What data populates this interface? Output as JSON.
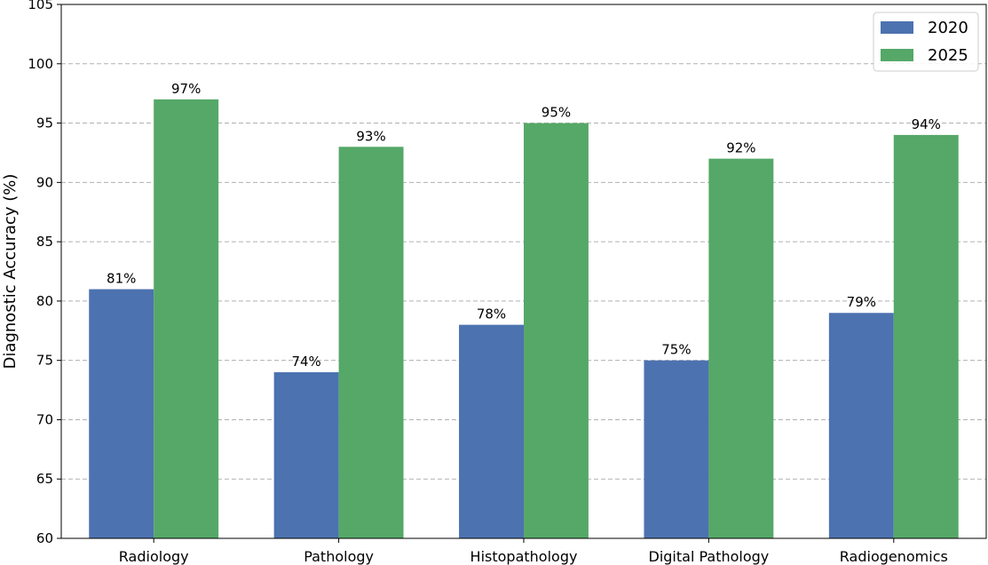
{
  "chart_data": {
    "type": "bar",
    "title": "",
    "xlabel": "",
    "ylabel": "Diagnostic Accuracy (%)",
    "categories": [
      "Radiology",
      "Pathology",
      "Histopathology",
      "Digital Pathology",
      "Radiogenomics"
    ],
    "series": [
      {
        "name": "2020",
        "color": "#4c72b0",
        "values": [
          81,
          74,
          78,
          75,
          79
        ],
        "labels": [
          "81%",
          "74%",
          "78%",
          "75%",
          "79%"
        ]
      },
      {
        "name": "2025",
        "color": "#55a868",
        "values": [
          97,
          93,
          95,
          92,
          94
        ],
        "labels": [
          "97%",
          "93%",
          "95%",
          "92%",
          "94%"
        ]
      }
    ],
    "ylim": [
      60,
      105
    ],
    "yticks": [
      "60",
      "65",
      "70",
      "75",
      "80",
      "85",
      "90",
      "95",
      "100",
      "105"
    ],
    "grid": "y-dashed",
    "legend_position": "top-right"
  }
}
